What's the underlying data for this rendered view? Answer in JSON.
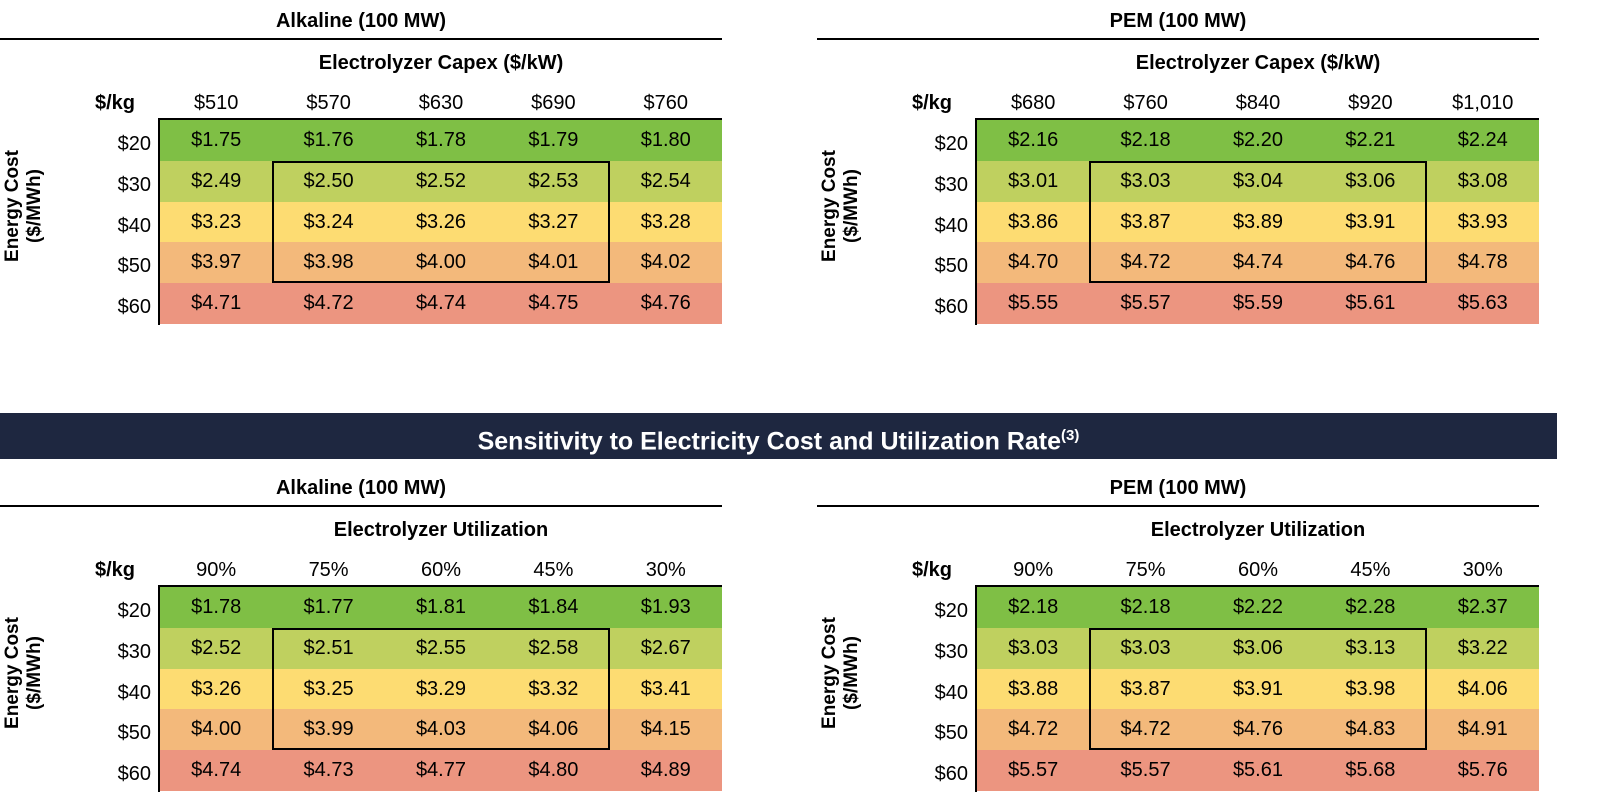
{
  "top_left": {
    "title": "Alkaline (100 MW)",
    "col_group": "Electrolyzer Capex ($/kW)",
    "unit": "$/kg",
    "columns": [
      "$510",
      "$570",
      "$630",
      "$690",
      "$760"
    ],
    "row_axis": [
      "Energy Cost",
      "($/MWh)"
    ],
    "rows": [
      "$20",
      "$30",
      "$40",
      "$50",
      "$60"
    ],
    "values": [
      [
        "$1.75",
        "$1.76",
        "$1.78",
        "$1.79",
        "$1.80"
      ],
      [
        "$2.49",
        "$2.50",
        "$2.52",
        "$2.53",
        "$2.54"
      ],
      [
        "$3.23",
        "$3.24",
        "$3.26",
        "$3.27",
        "$3.28"
      ],
      [
        "$3.97",
        "$3.98",
        "$4.00",
        "$4.01",
        "$4.02"
      ],
      [
        "$4.71",
        "$4.72",
        "$4.74",
        "$4.75",
        "$4.76"
      ]
    ]
  },
  "top_right": {
    "title": "PEM (100 MW)",
    "col_group": "Electrolyzer Capex ($/kW)",
    "unit": "$/kg",
    "columns": [
      "$680",
      "$760",
      "$840",
      "$920",
      "$1,010"
    ],
    "row_axis": [
      "Energy Cost",
      "($/MWh)"
    ],
    "rows": [
      "$20",
      "$30",
      "$40",
      "$50",
      "$60"
    ],
    "values": [
      [
        "$2.16",
        "$2.18",
        "$2.20",
        "$2.21",
        "$2.24"
      ],
      [
        "$3.01",
        "$3.03",
        "$3.04",
        "$3.06",
        "$3.08"
      ],
      [
        "$3.86",
        "$3.87",
        "$3.89",
        "$3.91",
        "$3.93"
      ],
      [
        "$4.70",
        "$4.72",
        "$4.74",
        "$4.76",
        "$4.78"
      ],
      [
        "$5.55",
        "$5.57",
        "$5.59",
        "$5.61",
        "$5.63"
      ]
    ]
  },
  "banner": {
    "title": "Sensitivity to Electricity Cost and Utilization Rate",
    "footnote": "(3)"
  },
  "bottom_left": {
    "title": "Alkaline (100 MW)",
    "col_group": "Electrolyzer Utilization",
    "unit": "$/kg",
    "columns": [
      "90%",
      "75%",
      "60%",
      "45%",
      "30%"
    ],
    "row_axis": [
      "Energy Cost",
      "($/MWh)"
    ],
    "rows": [
      "$20",
      "$30",
      "$40",
      "$50",
      "$60"
    ],
    "values": [
      [
        "$1.78",
        "$1.77",
        "$1.81",
        "$1.84",
        "$1.93"
      ],
      [
        "$2.52",
        "$2.51",
        "$2.55",
        "$2.58",
        "$2.67"
      ],
      [
        "$3.26",
        "$3.25",
        "$3.29",
        "$3.32",
        "$3.41"
      ],
      [
        "$4.00",
        "$3.99",
        "$4.03",
        "$4.06",
        "$4.15"
      ],
      [
        "$4.74",
        "$4.73",
        "$4.77",
        "$4.80",
        "$4.89"
      ]
    ]
  },
  "bottom_right": {
    "title": "PEM (100 MW)",
    "col_group": "Electrolyzer Utilization",
    "unit": "$/kg",
    "columns": [
      "90%",
      "75%",
      "60%",
      "45%",
      "30%"
    ],
    "row_axis": [
      "Energy Cost",
      "($/MWh)"
    ],
    "rows": [
      "$20",
      "$30",
      "$40",
      "$50",
      "$60"
    ],
    "values": [
      [
        "$2.18",
        "$2.18",
        "$2.22",
        "$2.28",
        "$2.37"
      ],
      [
        "$3.03",
        "$3.03",
        "$3.06",
        "$3.13",
        "$3.22"
      ],
      [
        "$3.88",
        "$3.87",
        "$3.91",
        "$3.98",
        "$4.06"
      ],
      [
        "$4.72",
        "$4.72",
        "$4.76",
        "$4.83",
        "$4.91"
      ],
      [
        "$5.57",
        "$5.57",
        "$5.61",
        "$5.68",
        "$5.76"
      ]
    ]
  },
  "colors": {
    "row_shades": [
      "#7fbf45",
      "#bfd05f",
      "#fddc72",
      "#f3b97b",
      "#ec9580"
    ],
    "banner_bg": "#1e2740",
    "banner_text": "#ffffff"
  }
}
